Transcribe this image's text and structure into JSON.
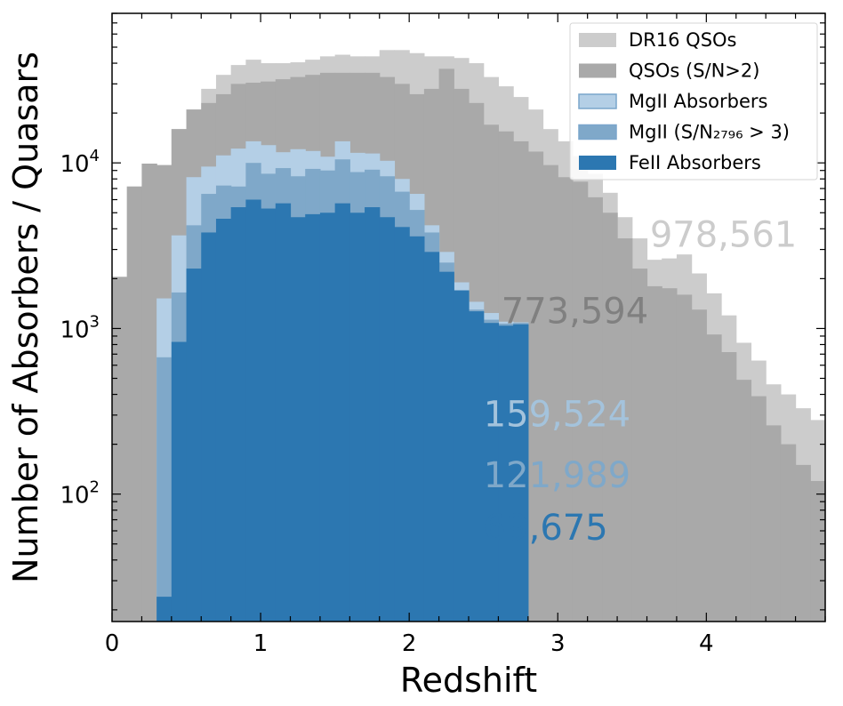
{
  "chart_data": {
    "type": "bar",
    "xlabel": "Redshift",
    "ylabel": "Number of Absorbers / Quasars",
    "xlim": [
      0,
      4.8
    ],
    "ylim": [
      17,
      80000
    ],
    "yscale": "log",
    "bin_width": 0.1,
    "x_ticks": [
      {
        "value": 0,
        "label": "0"
      },
      {
        "value": 1,
        "label": "1"
      },
      {
        "value": 2,
        "label": "2"
      },
      {
        "value": 3,
        "label": "3"
      },
      {
        "value": 4,
        "label": "4"
      }
    ],
    "y_ticks": [
      {
        "value": 100,
        "base": "10",
        "exp": "2"
      },
      {
        "value": 1000,
        "base": "10",
        "exp": "3"
      },
      {
        "value": 10000,
        "base": "10",
        "exp": "4"
      }
    ],
    "legend_position": "top-right",
    "series": [
      {
        "name": "DR16 QSOs",
        "color": "#cccccc",
        "x_start": 0.0,
        "values": [
          2050,
          7200,
          9900,
          9700,
          16000,
          21000,
          28000,
          34000,
          39000,
          42000,
          40000,
          40000,
          40500,
          42000,
          44000,
          45000,
          44000,
          44000,
          48000,
          48000,
          46000,
          44000,
          44000,
          43000,
          40000,
          33000,
          29000,
          25000,
          21000,
          16000,
          13500,
          11000,
          8600,
          6600,
          4700,
          3500,
          2600,
          2650,
          2800,
          2150,
          1630,
          1200,
          820,
          640,
          460,
          400,
          330,
          280
        ]
      },
      {
        "name": "QSOs (S/N>2)",
        "color": "#a9a9a9",
        "x_start": 0.0,
        "values": [
          2050,
          7200,
          9900,
          9700,
          16000,
          21000,
          23000,
          26000,
          30000,
          30500,
          31000,
          32000,
          33000,
          34000,
          35000,
          35000,
          35000,
          35000,
          33000,
          30000,
          26000,
          28000,
          37000,
          28000,
          23000,
          17000,
          15500,
          13500,
          11700,
          9700,
          8200,
          7700,
          6200,
          5000,
          3500,
          2300,
          1800,
          1750,
          1600,
          1300,
          920,
          720,
          490,
          390,
          260,
          200,
          150,
          120
        ]
      },
      {
        "name": "MgII Absorbers",
        "color": "#b4cfe6",
        "x_start": 0.3,
        "values": [
          1520,
          3650,
          8200,
          9500,
          11100,
          12200,
          13500,
          12800,
          11600,
          12100,
          11800,
          10900,
          13500,
          11500,
          11400,
          10300,
          8000,
          6500,
          4200,
          2900,
          1900,
          1450,
          1240,
          1100,
          1090
        ]
      },
      {
        "name": "MgII (S/N₂₇₉₆ > 3)",
        "color": "#7fa8c9",
        "x_start": 0.3,
        "values": [
          670,
          1650,
          4200,
          6500,
          7300,
          7200,
          10000,
          8600,
          9300,
          8300,
          9200,
          9000,
          10500,
          8800,
          9100,
          8300,
          6700,
          5200,
          3800,
          2500,
          1650,
          1300,
          1130,
          1070,
          1080
        ]
      },
      {
        "name": "FeII Absorbers",
        "color": "#2c77b1",
        "x_start": 0.3,
        "values": [
          24,
          830,
          2300,
          3800,
          4600,
          5400,
          6000,
          5300,
          5700,
          4700,
          4900,
          5000,
          5700,
          5000,
          5400,
          4700,
          4100,
          3600,
          2900,
          2200,
          1700,
          1270,
          1080,
          1040,
          1060
        ]
      }
    ],
    "annotations": [
      {
        "text": "978,561",
        "color": "#cccccc",
        "x": 3.62,
        "y": 3700
      },
      {
        "text": "773,594",
        "color": "#808080",
        "x": 2.62,
        "y": 1280
      },
      {
        "text": "159,524",
        "color": "#a4c3dc",
        "x": 2.5,
        "y": 305
      },
      {
        "text": "121,989",
        "color": "#7fa8c9",
        "x": 2.5,
        "y": 131
      },
      {
        "text": "69,675",
        "color": "#2c77b1",
        "x": 2.5,
        "y": 63
      }
    ]
  }
}
